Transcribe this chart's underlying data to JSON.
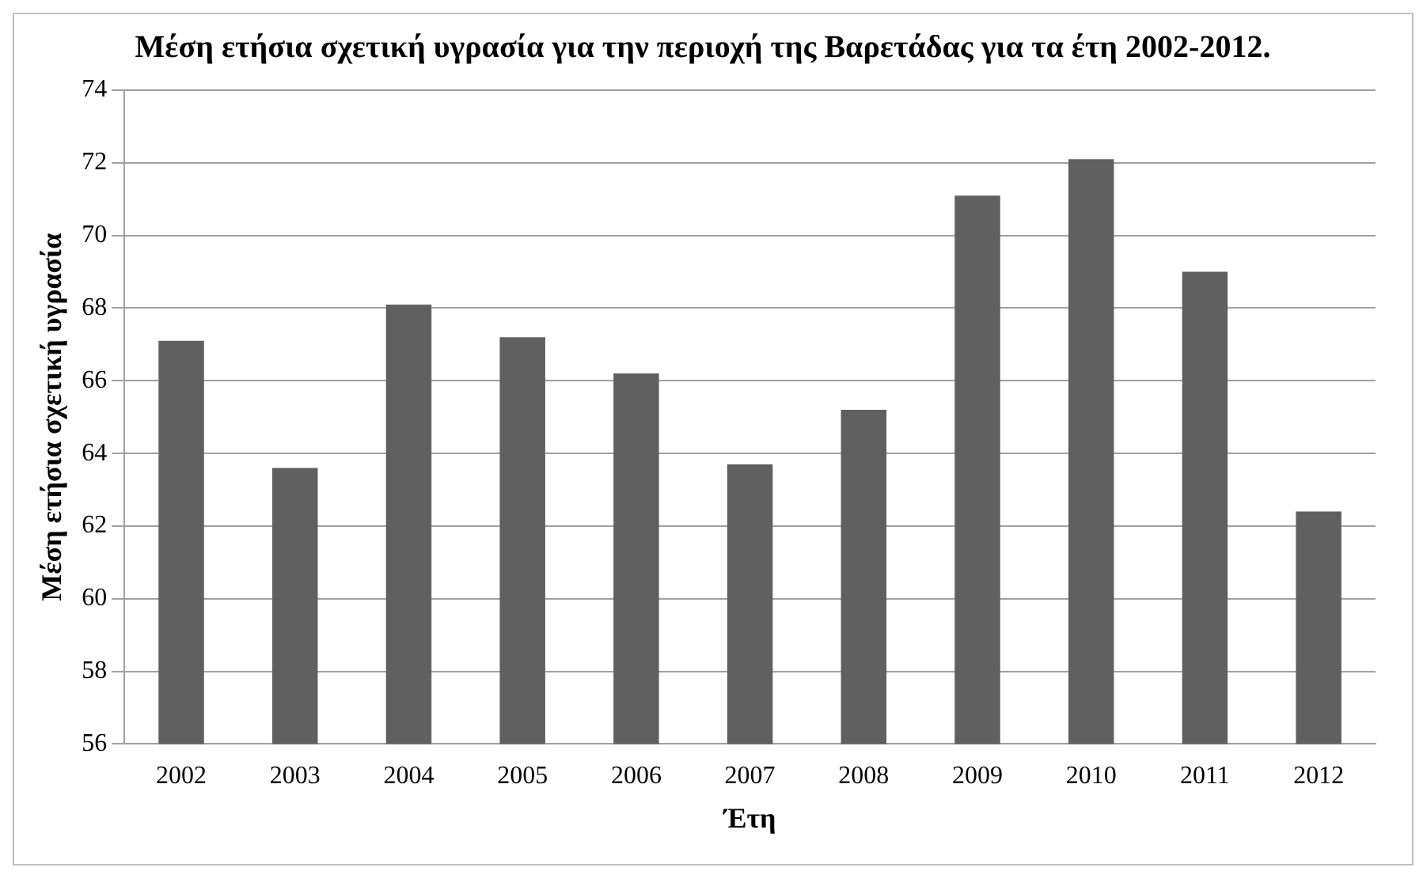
{
  "chart_data": {
    "type": "bar",
    "title": "Μέση ετήσια σχετική υγρασία για την περιοχή της Βαρετάδας για τα έτη 2002-2012.",
    "xlabel": "Έτη",
    "ylabel": "Μέση ετήσια σχετική υγρασία",
    "categories": [
      "2002",
      "2003",
      "2004",
      "2005",
      "2006",
      "2007",
      "2008",
      "2009",
      "2010",
      "2011",
      "2012"
    ],
    "values": [
      67.1,
      63.6,
      68.1,
      67.2,
      66.2,
      63.7,
      65.2,
      71.1,
      72.1,
      69.0,
      62.4
    ],
    "color": "#606060",
    "ylim": [
      56,
      74
    ],
    "yticks": [
      56,
      58,
      60,
      62,
      64,
      66,
      68,
      70,
      72,
      74
    ],
    "grid": "y",
    "legend": false
  }
}
